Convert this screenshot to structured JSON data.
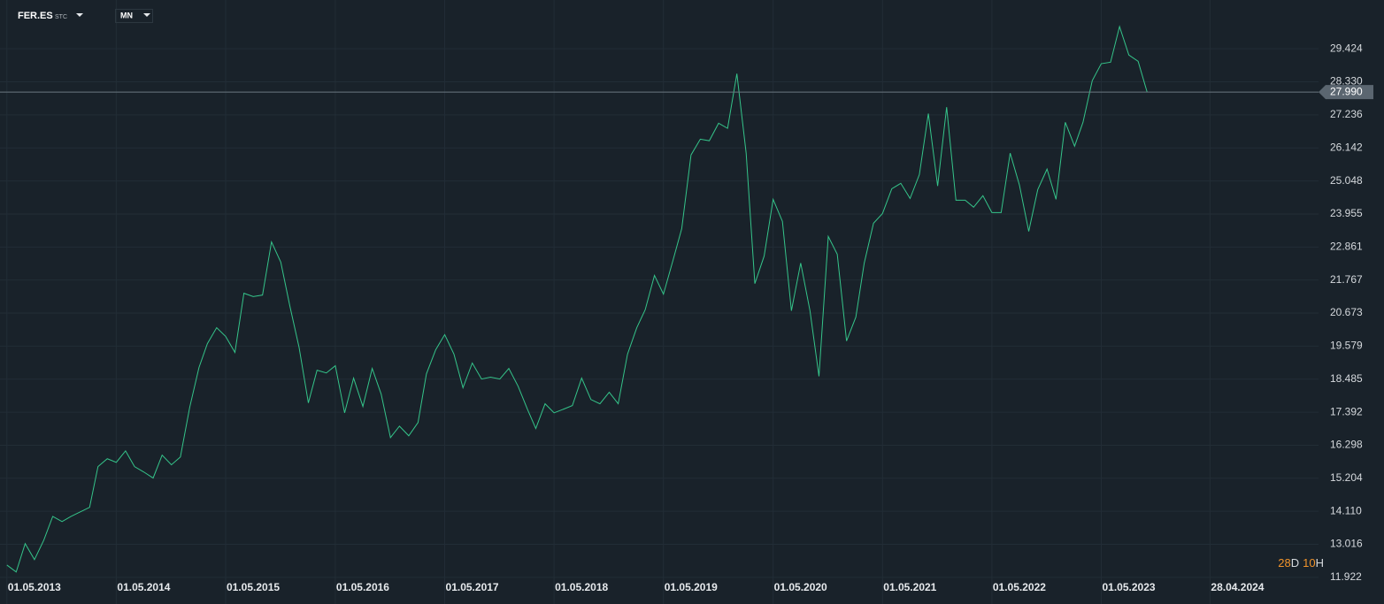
{
  "toolbar": {
    "symbol": "FER.ES",
    "symbol_type": "STC",
    "interval": "MN"
  },
  "countdown": [
    "28",
    "D",
    "10",
    "H"
  ],
  "chart_data": {
    "type": "line",
    "color": "#35c48a",
    "grid": true,
    "last_price": {
      "value": 27.99,
      "label": "27.990"
    },
    "x": [
      "01.05.2013",
      "01.06.2013",
      "01.07.2013",
      "01.08.2013",
      "01.09.2013",
      "01.10.2013",
      "01.11.2013",
      "01.12.2013",
      "01.01.2014",
      "01.02.2014",
      "01.03.2014",
      "01.04.2014",
      "01.05.2014",
      "01.06.2014",
      "01.07.2014",
      "01.08.2014",
      "01.09.2014",
      "01.10.2014",
      "01.11.2014",
      "01.12.2014",
      "01.01.2015",
      "01.02.2015",
      "01.03.2015",
      "01.04.2015",
      "01.05.2015",
      "01.06.2015",
      "01.07.2015",
      "01.08.2015",
      "01.09.2015",
      "01.10.2015",
      "01.11.2015",
      "01.12.2015",
      "01.01.2016",
      "01.02.2016",
      "01.03.2016",
      "01.04.2016",
      "01.05.2016",
      "01.06.2016",
      "01.07.2016",
      "01.08.2016",
      "01.09.2016",
      "01.10.2016",
      "01.11.2016",
      "01.12.2016",
      "01.01.2017",
      "01.02.2017",
      "01.03.2017",
      "01.04.2017",
      "01.05.2017",
      "01.06.2017",
      "01.07.2017",
      "01.08.2017",
      "01.09.2017",
      "01.10.2017",
      "01.11.2017",
      "01.12.2017",
      "01.01.2018",
      "01.02.2018",
      "01.03.2018",
      "01.04.2018",
      "01.05.2018",
      "01.06.2018",
      "01.07.2018",
      "01.08.2018",
      "01.09.2018",
      "01.10.2018",
      "01.11.2018",
      "01.12.2018",
      "01.01.2019",
      "01.02.2019",
      "01.03.2019",
      "01.04.2019",
      "01.05.2019",
      "01.06.2019",
      "01.07.2019",
      "01.08.2019",
      "01.09.2019",
      "01.10.2019",
      "01.11.2019",
      "01.12.2019",
      "01.01.2020",
      "01.02.2020",
      "01.03.2020",
      "01.04.2020",
      "01.05.2020",
      "01.06.2020",
      "01.07.2020",
      "01.08.2020",
      "01.09.2020",
      "01.10.2020",
      "01.11.2020",
      "01.12.2020",
      "01.01.2021",
      "01.02.2021",
      "01.03.2021",
      "01.04.2021",
      "01.05.2021",
      "01.06.2021",
      "01.07.2021",
      "01.08.2021",
      "01.09.2021",
      "01.10.2021",
      "01.11.2021",
      "01.12.2021",
      "01.01.2022",
      "01.02.2022",
      "01.03.2022",
      "01.04.2022",
      "01.05.2022",
      "01.06.2022",
      "01.07.2022",
      "01.08.2022",
      "01.09.2022",
      "01.10.2022",
      "01.11.2022",
      "01.12.2022",
      "01.01.2023",
      "01.02.2023",
      "01.03.2023",
      "01.04.2023",
      "01.05.2023",
      "01.06.2023",
      "01.07.2023",
      "01.08.2023",
      "01.09.2023",
      "01.10.2023"
    ],
    "values": [
      12.33,
      12.1,
      13.04,
      12.51,
      13.15,
      13.94,
      13.77,
      13.94,
      14.09,
      14.24,
      15.59,
      15.85,
      15.73,
      16.11,
      15.59,
      15.41,
      15.21,
      15.97,
      15.65,
      15.91,
      17.55,
      18.87,
      19.66,
      20.19,
      19.9,
      19.37,
      21.33,
      21.22,
      21.27,
      23.03,
      22.36,
      20.92,
      19.54,
      17.7,
      18.78,
      18.69,
      18.93,
      17.37,
      18.52,
      17.58,
      18.84,
      17.99,
      16.55,
      16.93,
      16.61,
      17.05,
      18.66,
      19.46,
      19.96,
      19.31,
      18.2,
      19.02,
      18.49,
      18.55,
      18.49,
      18.84,
      18.25,
      17.49,
      16.85,
      17.67,
      17.37,
      17.49,
      17.61,
      18.52,
      17.81,
      17.67,
      18.05,
      17.67,
      19.31,
      20.19,
      20.78,
      21.92,
      21.3,
      22.39,
      23.47,
      25.91,
      26.43,
      26.38,
      26.96,
      26.79,
      28.6,
      25.97,
      21.65,
      22.56,
      24.44,
      23.71,
      20.75,
      22.33,
      20.75,
      18.58,
      23.21,
      22.62,
      19.75,
      20.54,
      22.33,
      23.65,
      23.97,
      24.79,
      24.97,
      24.47,
      25.26,
      27.28,
      24.88,
      27.49,
      24.41,
      24.41,
      24.18,
      24.56,
      24.0,
      24.0,
      25.97,
      24.91,
      23.38,
      24.76,
      25.44,
      24.44,
      26.99,
      26.2,
      26.99,
      28.37,
      28.93,
      28.98,
      30.16,
      29.22,
      29.01,
      27.99
    ],
    "xlim": [
      "08.04.2013",
      "25.04.2025"
    ],
    "xticks": [
      "01.05.2013",
      "01.05.2014",
      "01.05.2015",
      "01.05.2016",
      "01.05.2017",
      "01.05.2018",
      "01.05.2019",
      "01.05.2020",
      "01.05.2021",
      "01.05.2022",
      "01.05.2023",
      "28.04.2024"
    ],
    "ylim": [
      11.04,
      31.04
    ],
    "yticks": [
      11.922,
      13.016,
      {
        "value": 14.11,
        "label": "14.110"
      },
      15.204,
      16.298,
      17.392,
      18.485,
      19.579,
      20.673,
      21.767,
      22.861,
      23.955,
      25.048,
      26.142,
      27.236,
      {
        "value": 28.33,
        "label": "28.330"
      },
      29.424
    ]
  }
}
